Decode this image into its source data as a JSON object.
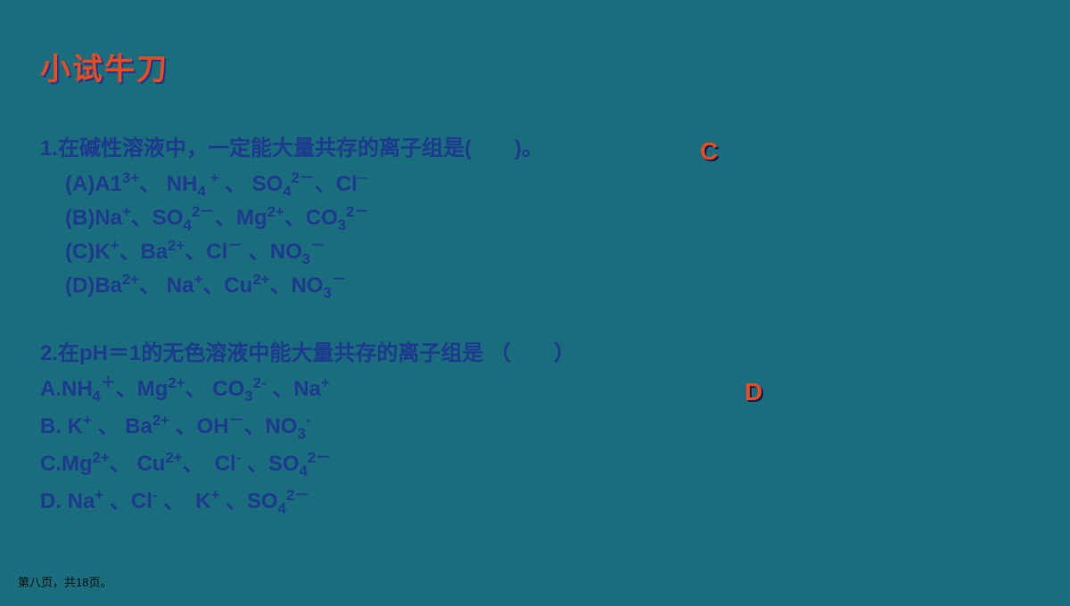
{
  "colors": {
    "background": "#1a6d7d",
    "text": "#1d3a8f",
    "accent": "#e84b1f",
    "title_shadow": "#1d3a8f",
    "answer_shadow": "#082050",
    "footer": "#0d0d0d"
  },
  "typography": {
    "title_fontsize": 34,
    "body_fontsize": 24,
    "answer_fontsize": 28,
    "footer_fontsize": 13,
    "font_family": "Microsoft YaHei"
  },
  "title": "小试牛刀",
  "q1": {
    "prompt": "1.在碱性溶液中，一定能大量共存的离子组是(　　)。",
    "answer": "C",
    "options": {
      "A_prefix": "(A)A1",
      "A_ion1_sup": "3+",
      "A_sep1": "、 NH",
      "A_ion2_sub": "4",
      "A_ion2_sup": " +",
      "A_sep2": " 、 SO",
      "A_ion3_sub": "4",
      "A_ion3_sup": "2－",
      "A_sep3": "、Cl",
      "A_ion4_sup": "─",
      "B_prefix": "(B)Na",
      "B_ion1_sup": "+",
      "B_sep1": "、SO",
      "B_ion2_sub": "4",
      "B_ion2_sup": "2－",
      "B_sep2": "、Mg",
      "B_ion3_sup": "2+",
      "B_sep3": "、CO",
      "B_ion4_sub": "3",
      "B_ion4_sup": "2－",
      "C_prefix": "(C)K",
      "C_ion1_sup": "+",
      "C_sep1": "、Ba",
      "C_ion2_sup": "2+",
      "C_sep2": "、Cl",
      "C_ion3_sup": "－",
      "C_sep3": " 、NO",
      "C_ion4_sub": "3",
      "C_ion4_sup": "－",
      "D_prefix": "(D)Ba",
      "D_ion1_sup": "2+",
      "D_sep1": "、 Na",
      "D_ion2_sup": "+",
      "D_sep2": "、Cu",
      "D_ion3_sup": "2+",
      "D_sep3": "、NO",
      "D_ion4_sub": "3",
      "D_ion4_sup": "－"
    }
  },
  "q2": {
    "prompt": "2.在pH＝1的无色溶液中能大量共存的离子组是 （　　）",
    "answer": "D",
    "options": {
      "A_prefix": "A.NH",
      "A_ion1_sub": "4",
      "A_ion1_sup": "＋",
      "A_sep1": "、Mg",
      "A_ion2_sup": "2+",
      "A_sep2": "、 CO",
      "A_ion3_sub": "3",
      "A_ion3_sup": "2-",
      "A_sep3": " 、Na",
      "A_ion4_sup": "+",
      "B_prefix": "B. K",
      "B_ion1_sup": "+",
      "B_sep1": " 、 Ba",
      "B_ion2_sup": "2+",
      "B_sep2": "  、OH",
      "B_ion3_sup": "－",
      "B_sep3": "、NO",
      "B_ion4_sub": "3",
      "B_ion4_sup": "-",
      "C_prefix": "C.Mg",
      "C_ion1_sup": "2+",
      "C_sep1": "、 Cu",
      "C_ion2_sup": "2+",
      "C_sep2": "、　Cl",
      "C_ion3_sup": "-",
      "C_sep3": " 、SO",
      "C_ion4_sub": "4",
      "C_ion4_sup": "2－",
      "D_prefix": "D.  Na",
      "D_ion1_sup": "+",
      "D_sep1": " 、Cl",
      "D_ion2_sup": "-",
      "D_sep2": " 、　K",
      "D_ion3_sup": "+",
      "D_sep3": "  、SO",
      "D_ion4_sub": "4",
      "D_ion4_sup": "2－"
    }
  },
  "footer": "第八页，共18页。"
}
